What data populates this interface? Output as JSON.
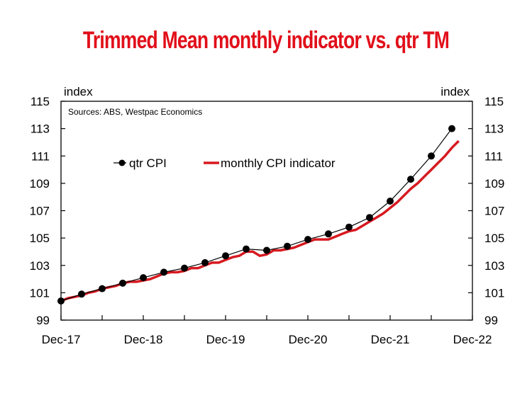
{
  "chart_data": {
    "type": "line",
    "title": "Trimmed Mean monthly indicator vs. qtr TM",
    "source": "Sources: ABS, Westpac Economics",
    "y_unit_left": "index",
    "y_unit_right": "index",
    "ylim": [
      99,
      115
    ],
    "y_ticks": [
      "99",
      "101",
      "103",
      "105",
      "107",
      "109",
      "111",
      "113",
      "115"
    ],
    "x_ticks": [
      "Dec-17",
      "Dec-18",
      "Dec-19",
      "Dec-20",
      "Dec-21",
      "Dec-22"
    ],
    "xlim": [
      "2017-12",
      "2022-12"
    ],
    "grid": false,
    "legend_position": "top-left",
    "colors": {
      "title": "#e10f1a",
      "monthly": "#d71920",
      "qtr": "#000000"
    },
    "series": [
      {
        "name": "qtr CPI",
        "style": "line-with-markers",
        "color": "#000000",
        "x": [
          "2017-12",
          "2018-03",
          "2018-06",
          "2018-09",
          "2018-12",
          "2019-03",
          "2019-06",
          "2019-09",
          "2019-12",
          "2020-03",
          "2020-06",
          "2020-09",
          "2020-12",
          "2021-03",
          "2021-06",
          "2021-09",
          "2021-12",
          "2022-03",
          "2022-06",
          "2022-09"
        ],
        "values": [
          100.4,
          100.9,
          101.3,
          101.7,
          102.1,
          102.5,
          102.8,
          103.2,
          103.7,
          104.2,
          104.1,
          104.4,
          104.9,
          105.3,
          105.8,
          106.5,
          107.7,
          109.3,
          111.0,
          113.0
        ]
      },
      {
        "name": "monthly CPI indicator",
        "style": "line",
        "color": "#d71920",
        "x": [
          "2017-12",
          "2018-01",
          "2018-02",
          "2018-03",
          "2018-04",
          "2018-05",
          "2018-06",
          "2018-07",
          "2018-08",
          "2018-09",
          "2018-10",
          "2018-11",
          "2018-12",
          "2019-01",
          "2019-02",
          "2019-03",
          "2019-04",
          "2019-05",
          "2019-06",
          "2019-07",
          "2019-08",
          "2019-09",
          "2019-10",
          "2019-11",
          "2019-12",
          "2020-01",
          "2020-02",
          "2020-03",
          "2020-04",
          "2020-05",
          "2020-06",
          "2020-07",
          "2020-08",
          "2020-09",
          "2020-10",
          "2020-11",
          "2020-12",
          "2021-01",
          "2021-02",
          "2021-03",
          "2021-04",
          "2021-05",
          "2021-06",
          "2021-07",
          "2021-08",
          "2021-09",
          "2021-10",
          "2021-11",
          "2021-12",
          "2022-01",
          "2022-02",
          "2022-03",
          "2022-04",
          "2022-05",
          "2022-06",
          "2022-07",
          "2022-08",
          "2022-09",
          "2022-10"
        ],
        "values": [
          100.4,
          100.6,
          100.7,
          100.8,
          101.0,
          101.1,
          101.3,
          101.4,
          101.5,
          101.7,
          101.8,
          101.8,
          101.9,
          102.0,
          102.2,
          102.4,
          102.5,
          102.5,
          102.6,
          102.8,
          102.8,
          103.0,
          103.2,
          103.2,
          103.4,
          103.6,
          103.7,
          104.0,
          104.0,
          103.7,
          103.8,
          104.1,
          104.1,
          104.2,
          104.3,
          104.5,
          104.7,
          104.9,
          104.9,
          104.9,
          105.1,
          105.3,
          105.5,
          105.6,
          105.9,
          106.2,
          106.5,
          106.8,
          107.2,
          107.6,
          108.1,
          108.6,
          109.0,
          109.5,
          110.0,
          110.5,
          111.0,
          111.6,
          112.1
        ]
      }
    ]
  }
}
